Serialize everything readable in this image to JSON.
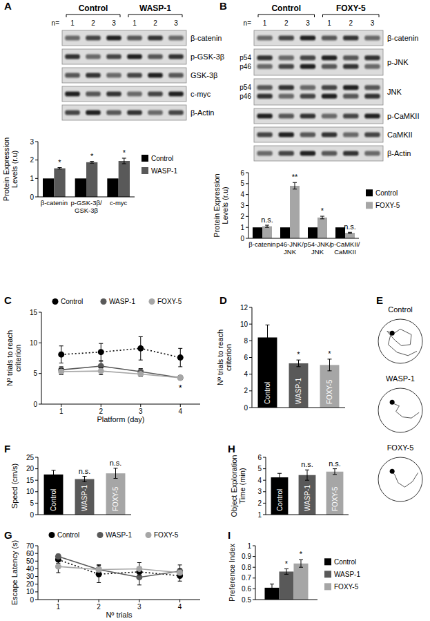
{
  "chart_data": [
    {
      "type": "blot",
      "title": "A",
      "groups": [
        "Control",
        "WASP-1"
      ],
      "lane_label": "n=",
      "lanes": [
        1,
        2,
        3,
        1,
        2,
        3
      ],
      "rows": [
        {
          "label": "β-catenin"
        },
        {
          "label": "p-GSK-3β"
        },
        {
          "label": "GSK-3β"
        },
        {
          "label": "c-myc"
        },
        {
          "label": "β-Actin"
        }
      ]
    },
    {
      "type": "bar",
      "categories": [
        "β-catenin",
        "p-GSK-3β/GSK-3β",
        "c-myc"
      ],
      "series": [
        {
          "name": "Control",
          "color": "#000000",
          "values": [
            1,
            1,
            1
          ]
        },
        {
          "name": "WASP-1",
          "color": "#595959",
          "values": [
            1.55,
            1.88,
            1.95
          ],
          "errors": [
            0.04,
            0.05,
            0.15
          ],
          "annotations": [
            "*",
            "*",
            "*"
          ]
        }
      ],
      "ylabel": "Protein Expression Levels (r.u)",
      "ylim": [
        0,
        3
      ],
      "yticks": [
        0,
        1,
        2,
        3
      ],
      "legend": "right"
    },
    {
      "type": "blot",
      "title": "B",
      "groups": [
        "Control",
        "FOXY-5"
      ],
      "lane_label": "n=",
      "lanes": [
        1,
        2,
        3,
        1,
        2,
        3
      ],
      "rows": [
        {
          "label": "β-catenin"
        },
        {
          "label": "p-JNK",
          "bands": [
            "p54",
            "p46"
          ]
        },
        {
          "label": "JNK",
          "bands": [
            "p54",
            "p46"
          ]
        },
        {
          "label": "p-CaMKII"
        },
        {
          "label": "CaMKII"
        },
        {
          "label": "β-Actin"
        }
      ]
    },
    {
      "type": "bar",
      "categories": [
        "β-catenin",
        "p46-JNK/JNK",
        "p54-JNK/JNK",
        "p-CaMKII/CaMKII"
      ],
      "series": [
        {
          "name": "Control",
          "color": "#000000",
          "values": [
            1,
            1,
            1,
            1
          ]
        },
        {
          "name": "FOXY-5",
          "color": "#a6a6a6",
          "values": [
            1.1,
            4.8,
            1.9,
            0.5
          ],
          "errors": [
            0.1,
            0.3,
            0.12,
            0.05
          ],
          "annotations": [
            "n.s.",
            "**",
            "*",
            "n.s."
          ]
        }
      ],
      "ylabel": "Protein Expression Levels (r.u)",
      "ylim": [
        0,
        6
      ],
      "yticks": [
        0,
        1,
        2,
        3,
        4,
        5,
        6
      ],
      "legend": "right"
    },
    {
      "type": "line",
      "title": "C",
      "x": [
        1,
        2,
        3,
        4
      ],
      "xlim": [
        0.5,
        4.5
      ],
      "xticks": [
        1,
        2,
        3,
        4
      ],
      "xlabel": "Platform (day)",
      "ylabel": "Nº trials to reach criterion",
      "ylim": [
        0,
        15
      ],
      "yticks": [
        0,
        5,
        10,
        15
      ],
      "legend": "top",
      "series": [
        {
          "name": "Control",
          "color": "#000000",
          "line_style": "dotted",
          "marker": "circle",
          "values": [
            8.1,
            8.5,
            9.1,
            7.6
          ],
          "errors": [
            1.4,
            1.4,
            1.9,
            1.5
          ]
        },
        {
          "name": "WASP-1",
          "color": "#595959",
          "line_style": "solid",
          "marker": "circle",
          "values": [
            5.6,
            6.2,
            5.3,
            4.3
          ],
          "errors": [
            0.5,
            0.8,
            0.5,
            0.3
          ]
        },
        {
          "name": "FOXY-5",
          "color": "#a6a6a6",
          "line_style": "solid",
          "marker": "circle",
          "values": [
            5.3,
            5.4,
            4.9,
            4.3
          ],
          "errors": [
            0.5,
            0.6,
            0.4,
            0.3
          ]
        }
      ],
      "annotations": [
        {
          "x": 4,
          "text": "*"
        }
      ]
    },
    {
      "type": "bar",
      "title": "D",
      "categories": [
        "Control",
        "WASP-1",
        "FOXY-5"
      ],
      "values": [
        8.4,
        5.3,
        5.1
      ],
      "errors": [
        1.5,
        0.4,
        0.7
      ],
      "colors": [
        "#000000",
        "#595959",
        "#a6a6a6"
      ],
      "annotations": [
        null,
        "*",
        "*"
      ],
      "ylabel": "Nº trials to reach criterion",
      "ylim": [
        0,
        12
      ],
      "yticks": [
        0,
        2,
        4,
        6,
        8,
        10,
        12
      ]
    },
    {
      "type": "diagram",
      "title": "E",
      "labels": [
        "Control",
        "WASP-1",
        "FOXY-5"
      ]
    },
    {
      "type": "bar",
      "title": "F",
      "categories": [
        "Control",
        "WASP-1",
        "FOXY-5"
      ],
      "values": [
        17.5,
        15.5,
        18
      ],
      "errors": [
        1.8,
        1.2,
        2.2
      ],
      "colors": [
        "#000000",
        "#595959",
        "#a6a6a6"
      ],
      "annotations": [
        null,
        "n.s.",
        "n.s."
      ],
      "ylabel": "Speed (cm/s)",
      "ylim": [
        0,
        25
      ],
      "yticks": [
        0,
        5,
        10,
        15,
        20,
        25
      ]
    },
    {
      "type": "line",
      "title": "G",
      "x": [
        1,
        2,
        3,
        4
      ],
      "xlim": [
        0.5,
        4.5
      ],
      "xticks": [
        1,
        2,
        3,
        4
      ],
      "xlabel": "Nº trials",
      "ylabel": "Escape Latency (s)",
      "ylim": [
        0,
        70
      ],
      "yticks": [
        0,
        10,
        20,
        30,
        40,
        50,
        60,
        70
      ],
      "legend": "top",
      "series": [
        {
          "name": "Control",
          "color": "#000000",
          "line_style": "dotted",
          "marker": "circle",
          "values": [
            52,
            33,
            36,
            31
          ],
          "errors": [
            5,
            11,
            6,
            7
          ]
        },
        {
          "name": "WASP-1",
          "color": "#595959",
          "line_style": "solid",
          "marker": "circle",
          "values": [
            56,
            39,
            29,
            37
          ],
          "errors": [
            3,
            6,
            10,
            8
          ]
        },
        {
          "name": "FOXY-5",
          "color": "#a6a6a6",
          "line_style": "solid",
          "marker": "circle",
          "values": [
            43,
            39,
            40,
            35
          ],
          "errors": [
            8,
            6,
            8,
            5
          ]
        }
      ]
    },
    {
      "type": "bar",
      "title": "H",
      "categories": [
        "Control",
        "WASP-1",
        "FOXY-5"
      ],
      "values": [
        4.25,
        4.45,
        4.75
      ],
      "errors": [
        0.35,
        0.45,
        0.25
      ],
      "colors": [
        "#000000",
        "#595959",
        "#a6a6a6"
      ],
      "annotations": [
        null,
        "n.s.",
        "n.s."
      ],
      "ylabel": "Object Exploration Time (min)",
      "ylim": [
        1,
        6
      ],
      "yticks": [
        1,
        2,
        3,
        4,
        5,
        6
      ]
    },
    {
      "type": "bar",
      "title": "I",
      "categories": [
        null
      ],
      "series": [
        {
          "name": "Control",
          "color": "#000000",
          "values": [
            0.61
          ],
          "errors": [
            0.035
          ]
        },
        {
          "name": "WASP-1",
          "color": "#595959",
          "values": [
            0.76
          ],
          "errors": [
            0.025
          ],
          "annotations": [
            "*"
          ]
        },
        {
          "name": "FOXY-5",
          "color": "#a6a6a6",
          "values": [
            0.835
          ],
          "errors": [
            0.035
          ],
          "annotations": [
            "*"
          ]
        }
      ],
      "ylabel": "Preference Index",
      "ylim": [
        0.5,
        1
      ],
      "yticks": [
        0.5,
        0.6,
        0.7,
        0.8,
        0.9,
        1
      ],
      "legend": "right"
    }
  ]
}
